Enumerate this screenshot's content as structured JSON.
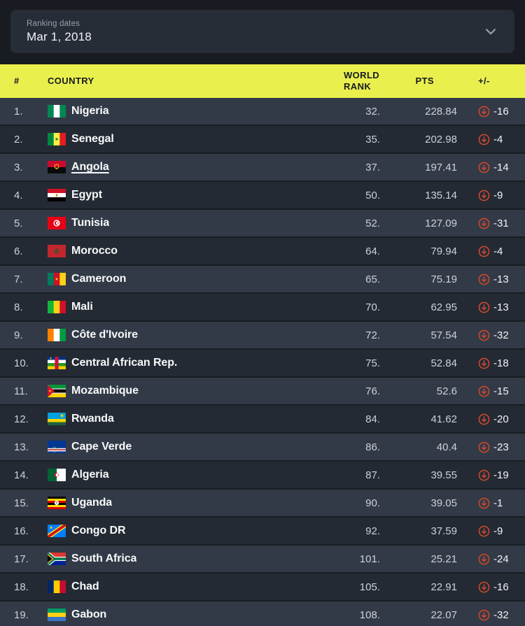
{
  "filter": {
    "label": "Ranking dates",
    "value": "Mar 1, 2018",
    "chevron_icon": "chevron-down"
  },
  "table": {
    "headers": {
      "rank": "#",
      "country": "COUNTRY",
      "world_rank_lines": [
        "WORLD",
        "RANK"
      ],
      "pts": "PTS",
      "delta": "+/-"
    },
    "delta_icon": "arrow-down-circle",
    "rows": [
      {
        "rank": "1.",
        "country": "Nigeria",
        "flag": "nigeria",
        "world_rank": "32.",
        "pts": "228.84",
        "delta": "-16",
        "underlined": false
      },
      {
        "rank": "2.",
        "country": "Senegal",
        "flag": "senegal",
        "world_rank": "35.",
        "pts": "202.98",
        "delta": "-4",
        "underlined": false
      },
      {
        "rank": "3.",
        "country": "Angola",
        "flag": "angola",
        "world_rank": "37.",
        "pts": "197.41",
        "delta": "-14",
        "underlined": true
      },
      {
        "rank": "4.",
        "country": "Egypt",
        "flag": "egypt",
        "world_rank": "50.",
        "pts": "135.14",
        "delta": "-9",
        "underlined": false
      },
      {
        "rank": "5.",
        "country": "Tunisia",
        "flag": "tunisia",
        "world_rank": "52.",
        "pts": "127.09",
        "delta": "-31",
        "underlined": false
      },
      {
        "rank": "6.",
        "country": "Morocco",
        "flag": "morocco",
        "world_rank": "64.",
        "pts": "79.94",
        "delta": "-4",
        "underlined": false
      },
      {
        "rank": "7.",
        "country": "Cameroon",
        "flag": "cameroon",
        "world_rank": "65.",
        "pts": "75.19",
        "delta": "-13",
        "underlined": false
      },
      {
        "rank": "8.",
        "country": "Mali",
        "flag": "mali",
        "world_rank": "70.",
        "pts": "62.95",
        "delta": "-13",
        "underlined": false
      },
      {
        "rank": "9.",
        "country": "Côte d'Ivoire",
        "flag": "cote-divoire",
        "world_rank": "72.",
        "pts": "57.54",
        "delta": "-32",
        "underlined": false
      },
      {
        "rank": "10.",
        "country": "Central African Rep.",
        "flag": "central-african-rep",
        "world_rank": "75.",
        "pts": "52.84",
        "delta": "-18",
        "underlined": false
      },
      {
        "rank": "11.",
        "country": "Mozambique",
        "flag": "mozambique",
        "world_rank": "76.",
        "pts": "52.6",
        "delta": "-15",
        "underlined": false
      },
      {
        "rank": "12.",
        "country": "Rwanda",
        "flag": "rwanda",
        "world_rank": "84.",
        "pts": "41.62",
        "delta": "-20",
        "underlined": false
      },
      {
        "rank": "13.",
        "country": "Cape Verde",
        "flag": "cape-verde",
        "world_rank": "86.",
        "pts": "40.4",
        "delta": "-23",
        "underlined": false
      },
      {
        "rank": "14.",
        "country": "Algeria",
        "flag": "algeria",
        "world_rank": "87.",
        "pts": "39.55",
        "delta": "-19",
        "underlined": false
      },
      {
        "rank": "15.",
        "country": "Uganda",
        "flag": "uganda",
        "world_rank": "90.",
        "pts": "39.05",
        "delta": "-1",
        "underlined": false
      },
      {
        "rank": "16.",
        "country": "Congo DR",
        "flag": "congo-dr",
        "world_rank": "92.",
        "pts": "37.59",
        "delta": "-9",
        "underlined": false
      },
      {
        "rank": "17.",
        "country": "South Africa",
        "flag": "south-africa",
        "world_rank": "101.",
        "pts": "25.21",
        "delta": "-24",
        "underlined": false
      },
      {
        "rank": "18.",
        "country": "Chad",
        "flag": "chad",
        "world_rank": "105.",
        "pts": "22.91",
        "delta": "-16",
        "underlined": false
      },
      {
        "rank": "19.",
        "country": "Gabon",
        "flag": "gabon",
        "world_rank": "108.",
        "pts": "22.07",
        "delta": "-32",
        "underlined": false
      }
    ]
  },
  "colors": {
    "header_accent": "#e9f04e",
    "header_text": "#171a1f",
    "delta_negative": "#c9472f",
    "row_light": "#333a47",
    "row_dark": "#242a33",
    "background": "#181b21",
    "dropdown_bg": "#272d37"
  }
}
